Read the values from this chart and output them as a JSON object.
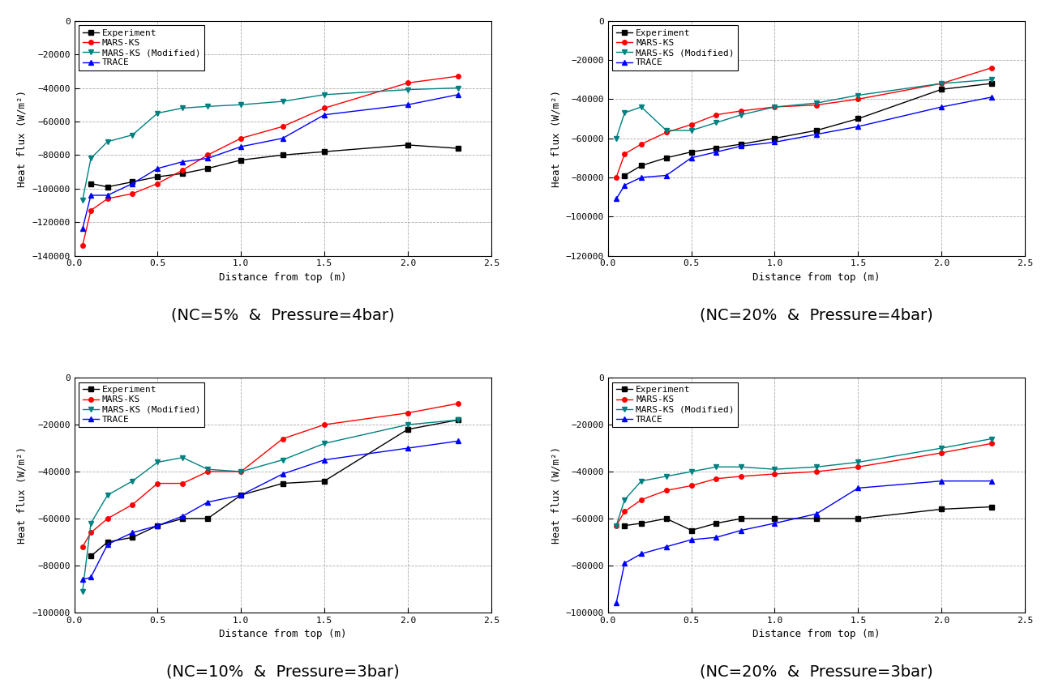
{
  "plots": [
    {
      "title": "(NC=5%  &  Pressure=4bar)",
      "ylim": [
        -140000,
        0
      ],
      "yticks": [
        0,
        -20000,
        -40000,
        -60000,
        -80000,
        -100000,
        -120000,
        -140000
      ],
      "series": {
        "Experiment": {
          "x": [
            0.1,
            0.2,
            0.35,
            0.5,
            0.65,
            0.8,
            1.0,
            1.25,
            1.5,
            2.0,
            2.3
          ],
          "y": [
            -97000,
            -99000,
            -96000,
            -93000,
            -91000,
            -88000,
            -83000,
            -80000,
            -78000,
            -74000,
            -76000
          ],
          "color": "#000000",
          "marker": "s",
          "linestyle": "-"
        },
        "MARS-KS": {
          "x": [
            0.05,
            0.1,
            0.2,
            0.35,
            0.5,
            0.65,
            0.8,
            1.0,
            1.25,
            1.5,
            2.0,
            2.3
          ],
          "y": [
            -134000,
            -113000,
            -106000,
            -103000,
            -97000,
            -89000,
            -80000,
            -70000,
            -63000,
            -52000,
            -37000,
            -33000
          ],
          "color": "#ff0000",
          "marker": "o",
          "linestyle": "-"
        },
        "MARS-KS (Modified)": {
          "x": [
            0.05,
            0.1,
            0.2,
            0.35,
            0.5,
            0.65,
            0.8,
            1.0,
            1.25,
            1.5,
            2.0,
            2.3
          ],
          "y": [
            -107000,
            -82000,
            -72000,
            -68000,
            -55000,
            -52000,
            -51000,
            -50000,
            -48000,
            -44000,
            -41000,
            -40000
          ],
          "color": "#008080",
          "marker": "v",
          "linestyle": "-"
        },
        "TRACE": {
          "x": [
            0.05,
            0.1,
            0.2,
            0.35,
            0.5,
            0.65,
            0.8,
            1.0,
            1.25,
            1.5,
            2.0,
            2.3
          ],
          "y": [
            -124000,
            -104000,
            -104000,
            -97000,
            -88000,
            -84000,
            -82000,
            -75000,
            -70000,
            -56000,
            -50000,
            -44000
          ],
          "color": "#0000ff",
          "marker": "^",
          "linestyle": "-"
        }
      }
    },
    {
      "title": "(NC=20%  &  Pressure=4bar)",
      "ylim": [
        -120000,
        0
      ],
      "yticks": [
        0,
        -20000,
        -40000,
        -60000,
        -80000,
        -100000,
        -120000
      ],
      "series": {
        "Experiment": {
          "x": [
            0.1,
            0.2,
            0.35,
            0.5,
            0.65,
            0.8,
            1.0,
            1.25,
            1.5,
            2.0,
            2.3
          ],
          "y": [
            -79000,
            -74000,
            -70000,
            -67000,
            -65000,
            -63000,
            -60000,
            -56000,
            -50000,
            -35000,
            -32000
          ],
          "color": "#000000",
          "marker": "s",
          "linestyle": "-"
        },
        "MARS-KS": {
          "x": [
            0.05,
            0.1,
            0.2,
            0.35,
            0.5,
            0.65,
            0.8,
            1.0,
            1.25,
            1.5,
            2.0,
            2.3
          ],
          "y": [
            -80000,
            -68000,
            -63000,
            -57000,
            -53000,
            -48000,
            -46000,
            -44000,
            -43000,
            -40000,
            -32000,
            -24000
          ],
          "color": "#ff0000",
          "marker": "o",
          "linestyle": "-"
        },
        "MARS-KS (Modified)": {
          "x": [
            0.05,
            0.1,
            0.2,
            0.35,
            0.5,
            0.65,
            0.8,
            1.0,
            1.25,
            1.5,
            2.0,
            2.3
          ],
          "y": [
            -60000,
            -47000,
            -44000,
            -56000,
            -56000,
            -52000,
            -48000,
            -44000,
            -42000,
            -38000,
            -32000,
            -30000
          ],
          "color": "#008080",
          "marker": "v",
          "linestyle": "-"
        },
        "TRACE": {
          "x": [
            0.05,
            0.1,
            0.2,
            0.35,
            0.5,
            0.65,
            0.8,
            1.0,
            1.25,
            1.5,
            2.0,
            2.3
          ],
          "y": [
            -91000,
            -84000,
            -80000,
            -79000,
            -70000,
            -67000,
            -64000,
            -62000,
            -58000,
            -54000,
            -44000,
            -39000
          ],
          "color": "#0000ff",
          "marker": "^",
          "linestyle": "-"
        }
      }
    },
    {
      "title": "(NC=10%  &  Pressure=3bar)",
      "ylim": [
        -100000,
        0
      ],
      "yticks": [
        0,
        -20000,
        -40000,
        -60000,
        -80000,
        -100000
      ],
      "series": {
        "Experiment": {
          "x": [
            0.1,
            0.2,
            0.35,
            0.5,
            0.65,
            0.8,
            1.0,
            1.25,
            1.5,
            2.0,
            2.3
          ],
          "y": [
            -76000,
            -70000,
            -68000,
            -63000,
            -60000,
            -60000,
            -50000,
            -45000,
            -44000,
            -22000,
            -18000
          ],
          "color": "#000000",
          "marker": "s",
          "linestyle": "-"
        },
        "MARS-KS": {
          "x": [
            0.05,
            0.1,
            0.2,
            0.35,
            0.5,
            0.65,
            0.8,
            1.0,
            1.25,
            1.5,
            2.0,
            2.3
          ],
          "y": [
            -72000,
            -66000,
            -60000,
            -54000,
            -45000,
            -45000,
            -40000,
            -40000,
            -26000,
            -20000,
            -15000,
            -11000
          ],
          "color": "#ff0000",
          "marker": "o",
          "linestyle": "-"
        },
        "MARS-KS (Modified)": {
          "x": [
            0.05,
            0.1,
            0.2,
            0.35,
            0.5,
            0.65,
            0.8,
            1.0,
            1.25,
            1.5,
            2.0,
            2.3
          ],
          "y": [
            -91000,
            -62000,
            -50000,
            -44000,
            -36000,
            -34000,
            -39000,
            -40000,
            -35000,
            -28000,
            -20000,
            -18000
          ],
          "color": "#008080",
          "marker": "v",
          "linestyle": "-"
        },
        "TRACE": {
          "x": [
            0.05,
            0.1,
            0.2,
            0.35,
            0.5,
            0.65,
            0.8,
            1.0,
            1.25,
            1.5,
            2.0,
            2.3
          ],
          "y": [
            -86000,
            -85000,
            -71000,
            -66000,
            -63000,
            -59000,
            -53000,
            -50000,
            -41000,
            -35000,
            -30000,
            -27000
          ],
          "color": "#0000ff",
          "marker": "^",
          "linestyle": "-"
        }
      }
    },
    {
      "title": "(NC=20%  &  Pressure=3bar)",
      "ylim": [
        -100000,
        0
      ],
      "yticks": [
        0,
        -20000,
        -40000,
        -60000,
        -80000,
        -100000
      ],
      "series": {
        "Experiment": {
          "x": [
            0.1,
            0.2,
            0.35,
            0.5,
            0.65,
            0.8,
            1.0,
            1.25,
            1.5,
            2.0,
            2.3
          ],
          "y": [
            -63000,
            -62000,
            -60000,
            -65000,
            -62000,
            -60000,
            -60000,
            -60000,
            -60000,
            -56000,
            -55000
          ],
          "color": "#000000",
          "marker": "s",
          "linestyle": "-"
        },
        "MARS-KS": {
          "x": [
            0.05,
            0.1,
            0.2,
            0.35,
            0.5,
            0.65,
            0.8,
            1.0,
            1.25,
            1.5,
            2.0,
            2.3
          ],
          "y": [
            -63000,
            -57000,
            -52000,
            -48000,
            -46000,
            -43000,
            -42000,
            -41000,
            -40000,
            -38000,
            -32000,
            -28000
          ],
          "color": "#ff0000",
          "marker": "o",
          "linestyle": "-"
        },
        "MARS-KS (Modified)": {
          "x": [
            0.05,
            0.1,
            0.2,
            0.35,
            0.5,
            0.65,
            0.8,
            1.0,
            1.25,
            1.5,
            2.0,
            2.3
          ],
          "y": [
            -63000,
            -52000,
            -44000,
            -42000,
            -40000,
            -38000,
            -38000,
            -39000,
            -38000,
            -36000,
            -30000,
            -26000
          ],
          "color": "#008080",
          "marker": "v",
          "linestyle": "-"
        },
        "TRACE": {
          "x": [
            0.05,
            0.1,
            0.2,
            0.35,
            0.5,
            0.65,
            0.8,
            1.0,
            1.25,
            1.5,
            2.0,
            2.3
          ],
          "y": [
            -96000,
            -79000,
            -75000,
            -72000,
            -69000,
            -68000,
            -65000,
            -62000,
            -58000,
            -47000,
            -44000,
            -44000
          ],
          "color": "#0000ff",
          "marker": "^",
          "linestyle": "-"
        }
      }
    }
  ],
  "xlabel": "Distance from top (m)",
  "ylabel": "Heat flux (W/m²)",
  "xlim": [
    0,
    2.5
  ],
  "xticks": [
    0.0,
    0.5,
    1.0,
    1.5,
    2.0,
    2.5
  ],
  "legend_labels": [
    "Experiment",
    "MARS-KS",
    "MARS-KS (Modified)",
    "TRACE"
  ],
  "bg_color": "#ffffff",
  "fig_bg_color": "#ffffff",
  "title_fontsize": 14,
  "axis_fontsize": 9,
  "tick_fontsize": 8,
  "legend_fontsize": 8
}
